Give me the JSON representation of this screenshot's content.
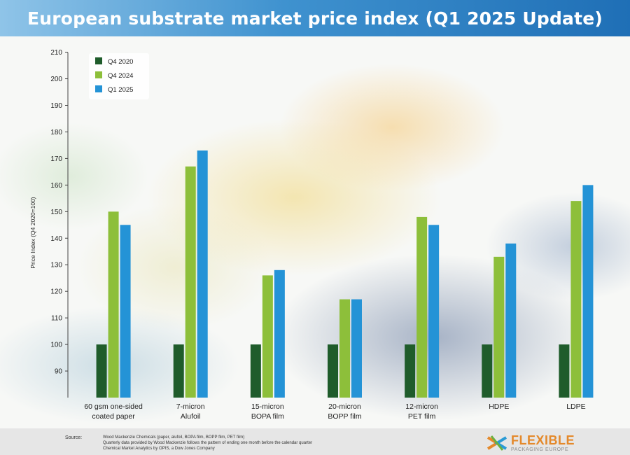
{
  "header": {
    "title": "European substrate market price index (Q1 2025 Update)"
  },
  "chart_data": {
    "type": "bar",
    "categories": [
      [
        "60 gsm one-sided",
        "coated paper"
      ],
      [
        "7-micron",
        "Alufoil"
      ],
      [
        "15-micron",
        "BOPA film"
      ],
      [
        "20-micron",
        "BOPP film"
      ],
      [
        "12-micron",
        "PET film"
      ],
      [
        "HDPE"
      ],
      [
        "LDPE"
      ]
    ],
    "series": [
      {
        "name": "Q4 2020",
        "color": "#1f5c2b",
        "values": [
          100,
          100,
          100,
          100,
          100,
          100,
          100
        ]
      },
      {
        "name": "Q4 2024",
        "color": "#8dbf3a",
        "values": [
          150,
          167,
          126,
          117,
          148,
          133,
          154
        ]
      },
      {
        "name": "Q1 2025",
        "color": "#2493d6",
        "values": [
          145,
          173,
          128,
          117,
          145,
          138,
          160
        ]
      }
    ],
    "ylabel": "Price Index (Q4 2020=100)",
    "ylim": [
      80,
      212
    ],
    "yticks": [
      90,
      100,
      110,
      120,
      130,
      140,
      150,
      160,
      170,
      180,
      190,
      200,
      210
    ],
    "legend": "top-left",
    "grid": false
  },
  "footer": {
    "source_label": "Source:",
    "source_lines": [
      "Wood Mackenzie Chemicals (paper, alufoil, BOPA film, BOPP film, PET film)",
      "Quarterly data provided by Wood Mackenzie follows the pattern of ending one month before the calendar quarter",
      "Chemical Market Analytics by OPIS, a Dow Jones Company"
    ],
    "logo_text": "FLEXIBLE",
    "logo_sub": "PACKAGING EUROPE"
  }
}
